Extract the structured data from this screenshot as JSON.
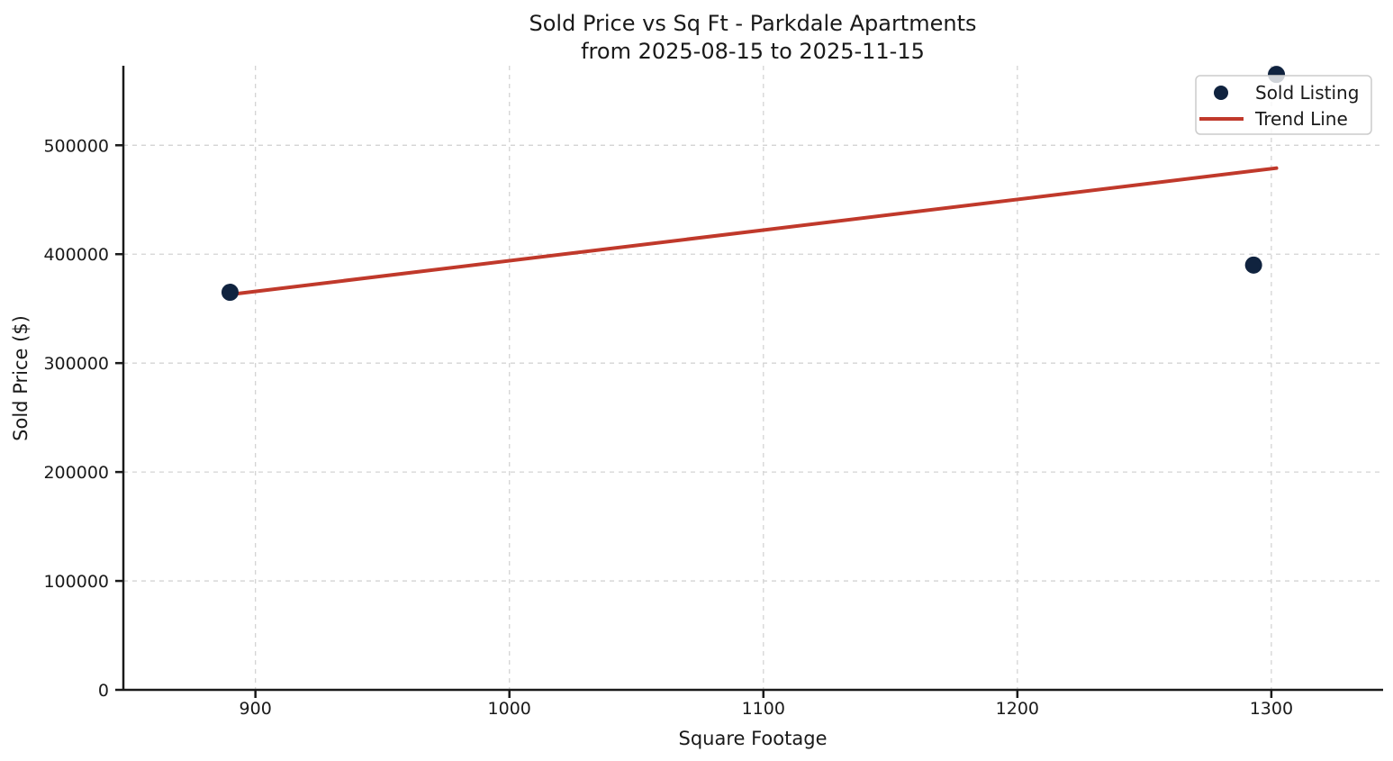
{
  "colors": {
    "scatter": "#10233f",
    "trend": "#c0392b",
    "grid": "#d4d4d4",
    "spine": "#1a1a1a",
    "text": "#1a1a1a",
    "legend_border": "#cccccc",
    "legend_bg_alpha": "rgba(255,255,255,0.8)",
    "background": "#ffffff"
  },
  "chart_data": {
    "type": "scatter",
    "title": "Sold Price vs Sq Ft - Parkdale Apartments",
    "subtitle": "from 2025-08-15 to 2025-11-15",
    "xlabel": "Square Footage",
    "ylabel": "Sold Price ($)",
    "x_ticks": [
      900,
      1000,
      1100,
      1200,
      1300
    ],
    "y_ticks": [
      0,
      100000,
      200000,
      300000,
      400000,
      500000
    ],
    "xlim": [
      848,
      1344
    ],
    "ylim": [
      0,
      573000
    ],
    "grid": true,
    "series": [
      {
        "name": "Sold Listing",
        "type": "scatter",
        "points": [
          [
            890,
            365000
          ],
          [
            1293,
            390000
          ],
          [
            1302,
            565000
          ]
        ]
      },
      {
        "name": "Trend Line",
        "type": "line",
        "points": [
          [
            890,
            363000
          ],
          [
            1302,
            479000
          ]
        ]
      }
    ],
    "legend": {
      "position": "upper right",
      "entries": [
        {
          "label": "Sold Listing",
          "marker": "dot"
        },
        {
          "label": "Trend Line",
          "marker": "line"
        }
      ]
    }
  }
}
